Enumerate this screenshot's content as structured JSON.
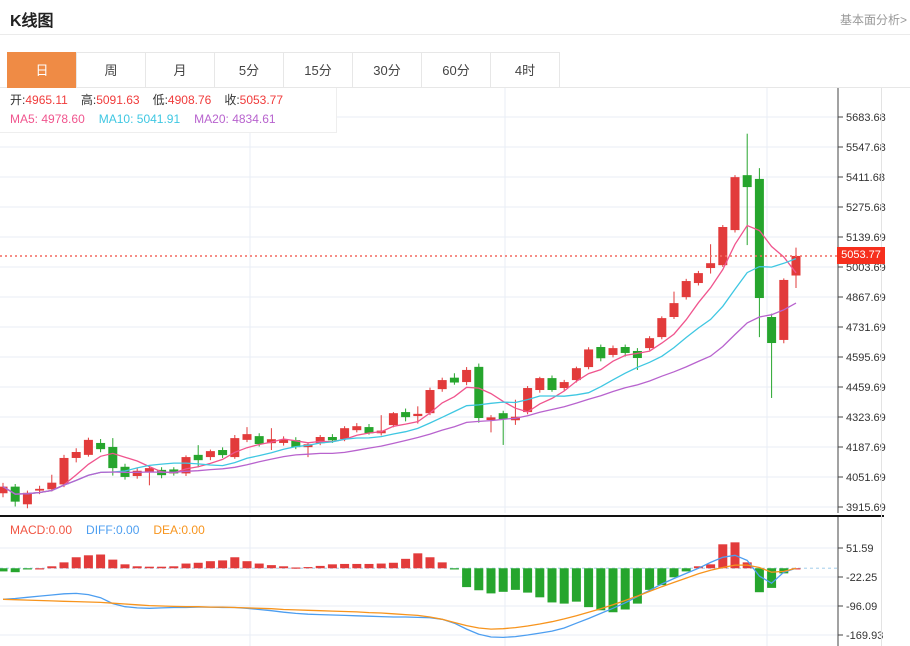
{
  "header": {
    "title": "K线图",
    "link": "基本面分析>"
  },
  "tabs": [
    {
      "label": "日",
      "active": true
    },
    {
      "label": "周",
      "active": false
    },
    {
      "label": "月",
      "active": false
    },
    {
      "label": "5分",
      "active": false
    },
    {
      "label": "15分",
      "active": false
    },
    {
      "label": "30分",
      "active": false
    },
    {
      "label": "60分",
      "active": false
    },
    {
      "label": "4时",
      "active": false
    }
  ],
  "legend": {
    "ohlc": [
      {
        "label": "开:",
        "value": "4965.11"
      },
      {
        "label": "高:",
        "value": "5091.63"
      },
      {
        "label": "低:",
        "value": "4908.76"
      },
      {
        "label": "收:",
        "value": "5053.77"
      }
    ],
    "ma": [
      {
        "label": "MA5:",
        "value": "4978.60"
      },
      {
        "label": "MA10:",
        "value": "5041.91"
      },
      {
        "label": "MA20:",
        "value": "4834.61"
      }
    ]
  },
  "macd_legend": [
    {
      "label": "MACD:",
      "value": "0.00"
    },
    {
      "label": "DIFF:",
      "value": "0.00"
    },
    {
      "label": "DEA:",
      "value": "0.00"
    }
  ],
  "current_price": "5053.77",
  "colors": {
    "up": "#e23b3b",
    "down": "#26a52d",
    "ma5": "#f0558e",
    "ma10": "#3fc7e2",
    "ma20": "#b863ce",
    "diff": "#4d9ef0",
    "dea": "#f7941d",
    "grid": "#e9eef6",
    "zeroline": "#b5d8ef",
    "priceline": "#f4695f",
    "tab_active": "#ef8b45",
    "badge": "#f62f1d",
    "ohlc_value": "#f03b3b",
    "macd_label": "#f15543",
    "link": "#999999",
    "axis_text": "#333333"
  },
  "chart_data": {
    "type": "candlestick+macd",
    "x_gridlines": [
      250,
      505,
      767
    ],
    "main": {
      "title": "K线图 日线",
      "y_ticks": [
        5683.68,
        5547.68,
        5411.68,
        5275.68,
        5139.69,
        5003.69,
        4867.69,
        4731.69,
        4595.69,
        4459.69,
        4323.69,
        4187.69,
        4051.69,
        3915.69
      ],
      "current_price": 5053.77,
      "ma_periods": [
        5,
        10,
        20
      ],
      "candles_format": "[open, high, low, close]",
      "candles": [
        [
          3978,
          4025,
          3960,
          4008
        ],
        [
          4008,
          4020,
          3918,
          3940
        ],
        [
          3928,
          3990,
          3910,
          3980
        ],
        [
          3990,
          4012,
          3974,
          3998
        ],
        [
          3996,
          4062,
          3986,
          4026
        ],
        [
          4018,
          4152,
          4006,
          4138
        ],
        [
          4138,
          4182,
          4118,
          4165
        ],
        [
          4152,
          4230,
          4144,
          4220
        ],
        [
          4206,
          4224,
          4164,
          4178
        ],
        [
          4188,
          4228,
          4058,
          4092
        ],
        [
          4098,
          4112,
          4040,
          4052
        ],
        [
          4056,
          4092,
          4044,
          4080
        ],
        [
          4074,
          4102,
          4014,
          4092
        ],
        [
          4084,
          4096,
          4046,
          4060
        ],
        [
          4086,
          4096,
          4058,
          4068
        ],
        [
          4068,
          4150,
          4056,
          4142
        ],
        [
          4152,
          4196,
          4096,
          4128
        ],
        [
          4142,
          4176,
          4128,
          4169
        ],
        [
          4174,
          4186,
          4138,
          4151
        ],
        [
          4142,
          4242,
          4134,
          4228
        ],
        [
          4220,
          4278,
          4210,
          4246
        ],
        [
          4237,
          4250,
          4190,
          4201
        ],
        [
          4205,
          4273,
          4174,
          4223
        ],
        [
          4206,
          4236,
          4194,
          4222
        ],
        [
          4219,
          4232,
          4178,
          4187
        ],
        [
          4187,
          4206,
          4142,
          4200
        ],
        [
          4205,
          4242,
          4196,
          4233
        ],
        [
          4233,
          4246,
          4206,
          4218
        ],
        [
          4223,
          4282,
          4214,
          4273
        ],
        [
          4264,
          4296,
          4254,
          4282
        ],
        [
          4278,
          4292,
          4244,
          4250
        ],
        [
          4250,
          4332,
          4240,
          4262
        ],
        [
          4287,
          4346,
          4277,
          4341
        ],
        [
          4346,
          4362,
          4304,
          4323
        ],
        [
          4328,
          4372,
          4294,
          4338
        ],
        [
          4341,
          4457,
          4332,
          4446
        ],
        [
          4450,
          4502,
          4438,
          4491
        ],
        [
          4502,
          4522,
          4470,
          4480
        ],
        [
          4482,
          4550,
          4468,
          4537
        ],
        [
          4551,
          4566,
          4298,
          4319
        ],
        [
          4310,
          4332,
          4254,
          4322
        ],
        [
          4341,
          4352,
          4197,
          4314
        ],
        [
          4309,
          4402,
          4288,
          4325
        ],
        [
          4346,
          4464,
          4336,
          4455
        ],
        [
          4446,
          4506,
          4434,
          4500
        ],
        [
          4500,
          4512,
          4438,
          4446
        ],
        [
          4455,
          4492,
          4444,
          4482
        ],
        [
          4491,
          4552,
          4480,
          4545
        ],
        [
          4550,
          4640,
          4540,
          4630
        ],
        [
          4641,
          4652,
          4576,
          4590
        ],
        [
          4605,
          4648,
          4594,
          4636
        ],
        [
          4641,
          4652,
          4598,
          4614
        ],
        [
          4623,
          4636,
          4537,
          4591
        ],
        [
          4636,
          4690,
          4626,
          4681
        ],
        [
          4686,
          4780,
          4676,
          4772
        ],
        [
          4777,
          4892,
          4768,
          4840
        ],
        [
          4867,
          4950,
          4856,
          4940
        ],
        [
          4931,
          4986,
          4920,
          4976
        ],
        [
          4999,
          5107,
          4974,
          5021
        ],
        [
          5012,
          5194,
          5004,
          5185
        ],
        [
          5171,
          5420,
          5160,
          5411
        ],
        [
          5420,
          5608,
          5103,
          5366
        ],
        [
          5403,
          5452,
          4686,
          4863
        ],
        [
          4777,
          4792,
          4410,
          4659
        ],
        [
          4673,
          4952,
          4658,
          4945
        ],
        [
          4965.11,
          5091.63,
          4908.76,
          5053.77
        ]
      ]
    },
    "macd": {
      "y_ticks": [
        51.59,
        -22.25,
        -96.09,
        -169.93
      ],
      "bars": [
        -8,
        -10,
        -2,
        0,
        5,
        15,
        28,
        33,
        35,
        22,
        10,
        5,
        4,
        4,
        5,
        12,
        14,
        18,
        20,
        28,
        18,
        12,
        8,
        5,
        2,
        3,
        6,
        10,
        11,
        11,
        11,
        12,
        14,
        24,
        38,
        28,
        15,
        -2,
        -48,
        -56,
        -64,
        -60,
        -55,
        -62,
        -74,
        -87,
        -90,
        -85,
        -99,
        -107,
        -112,
        -105,
        -90,
        -55,
        -43,
        -23,
        -8,
        5,
        10,
        61,
        66,
        15,
        -61,
        -50,
        -13,
        0
      ],
      "diff": [
        -79,
        -77,
        -74,
        -71,
        -68,
        -65,
        -64,
        -67,
        -75,
        -90,
        -98,
        -101,
        -102,
        -101,
        -100,
        -100,
        -99,
        -99,
        -100,
        -100,
        -102,
        -105,
        -108,
        -112,
        -115,
        -117,
        -118,
        -119,
        -120,
        -121,
        -122,
        -123,
        -124,
        -124,
        -125,
        -126,
        -130,
        -140,
        -155,
        -168,
        -175,
        -176,
        -174,
        -170,
        -165,
        -160,
        -152,
        -140,
        -128,
        -115,
        -102,
        -88,
        -72,
        -56,
        -40,
        -26,
        -13,
        0,
        15,
        28,
        33,
        20,
        -20,
        -38,
        -10,
        0
      ],
      "dea": [
        -79,
        -80,
        -81,
        -82,
        -83,
        -84,
        -85,
        -86,
        -87,
        -89,
        -91,
        -93,
        -95,
        -96,
        -97,
        -98,
        -98,
        -99,
        -99,
        -100,
        -101,
        -102,
        -103,
        -105,
        -106,
        -107,
        -108,
        -109,
        -110,
        -111,
        -113,
        -114,
        -116,
        -118,
        -120,
        -124,
        -130,
        -138,
        -146,
        -152,
        -155,
        -154,
        -151,
        -147,
        -142,
        -136,
        -129,
        -121,
        -112,
        -103,
        -93,
        -82,
        -71,
        -59,
        -47,
        -36,
        -25,
        -14,
        -5,
        2,
        8,
        8,
        2,
        -10,
        -8,
        0
      ]
    }
  }
}
